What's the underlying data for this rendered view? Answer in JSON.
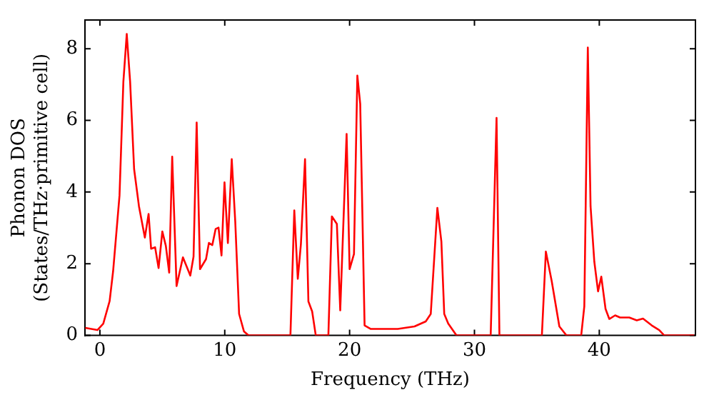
{
  "chart_data": {
    "type": "line",
    "xlabel": "Frequency (THz)",
    "ylabel": "Phonon DOS\n(States/THz·primitive cell)",
    "xlim": [
      -1.2,
      47.7
    ],
    "ylim": [
      0,
      8.8
    ],
    "xticks": [
      0,
      10,
      20,
      30,
      40
    ],
    "yticks": [
      0,
      2,
      4,
      6,
      8
    ],
    "grid": false,
    "legend": false,
    "marker": "none",
    "line_style": "solid",
    "series": [
      {
        "color": "#ff0000",
        "x": [
          -1.17,
          -0.2,
          0.27,
          0.78,
          1.06,
          1.57,
          1.88,
          2.15,
          2.42,
          2.74,
          3.13,
          3.6,
          3.9,
          4.1,
          4.42,
          4.7,
          5.0,
          5.28,
          5.55,
          5.79,
          6.14,
          6.65,
          7.24,
          7.5,
          7.75,
          8.02,
          8.5,
          8.73,
          9.0,
          9.27,
          9.5,
          9.74,
          9.98,
          10.25,
          10.56,
          10.84,
          11.15,
          11.54,
          11.9,
          15.26,
          15.57,
          15.85,
          16.1,
          16.43,
          16.7,
          17.0,
          17.29,
          18.3,
          18.58,
          18.98,
          19.25,
          19.76,
          20.0,
          20.35,
          20.62,
          20.85,
          21.2,
          21.7,
          23.86,
          25.2,
          26.1,
          26.5,
          27.03,
          27.35,
          27.58,
          27.9,
          28.56,
          31.3,
          31.77,
          32.0,
          35.4,
          35.72,
          36.19,
          36.8,
          37.37,
          38.55,
          38.8,
          39.08,
          39.3,
          39.6,
          39.9,
          40.16,
          40.5,
          40.8,
          41.27,
          41.66,
          42.4,
          43.0,
          43.5,
          44.2,
          44.8,
          45.2,
          47.6
        ],
        "values": [
          0.21,
          0.15,
          0.33,
          0.96,
          1.8,
          3.9,
          7.08,
          8.41,
          7.08,
          4.64,
          3.6,
          2.73,
          3.39,
          2.42,
          2.46,
          1.88,
          2.9,
          2.5,
          1.75,
          4.99,
          1.38,
          2.18,
          1.67,
          2.2,
          5.94,
          1.85,
          2.13,
          2.58,
          2.52,
          2.97,
          3.01,
          2.23,
          4.27,
          2.58,
          4.92,
          3.18,
          0.6,
          0.11,
          0,
          0,
          3.49,
          1.58,
          2.55,
          4.92,
          0.95,
          0.67,
          0,
          0,
          3.32,
          3.11,
          0.7,
          5.62,
          1.85,
          2.27,
          7.25,
          6.46,
          0.28,
          0.18,
          0.18,
          0.25,
          0.39,
          0.6,
          3.56,
          2.62,
          0.6,
          0.33,
          0,
          0,
          6.07,
          0,
          0,
          2.34,
          1.51,
          0.25,
          0,
          0,
          0.81,
          8.03,
          3.6,
          2.06,
          1.23,
          1.64,
          0.74,
          0.46,
          0.56,
          0.5,
          0.5,
          0.42,
          0.47,
          0.28,
          0.15,
          0,
          0
        ]
      }
    ]
  }
}
